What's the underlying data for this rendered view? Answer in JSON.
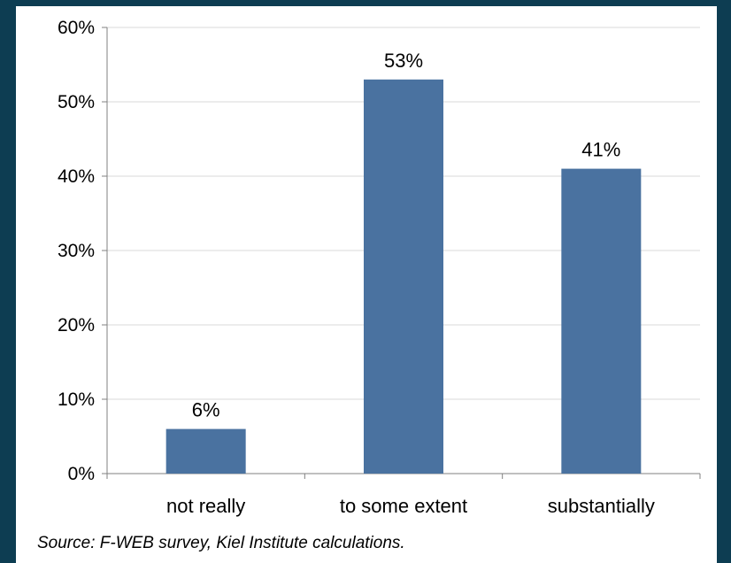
{
  "chart_data": {
    "type": "bar",
    "categories": [
      "not really",
      "to some extent",
      "substantially"
    ],
    "values": [
      6,
      53,
      41
    ],
    "data_labels": [
      "6%",
      "53%",
      "41%"
    ],
    "ylim": [
      0,
      60
    ],
    "yticks": [
      0,
      10,
      20,
      30,
      40,
      50,
      60
    ],
    "ytick_labels": [
      "0%",
      "10%",
      "20%",
      "30%",
      "40%",
      "50%",
      "60%"
    ],
    "grid": true,
    "legend": "none",
    "bar_color": "#4a72a0",
    "grid_color": "#d9d9d9"
  },
  "source": "Source: F-WEB survey, Kiel Institute calculations."
}
